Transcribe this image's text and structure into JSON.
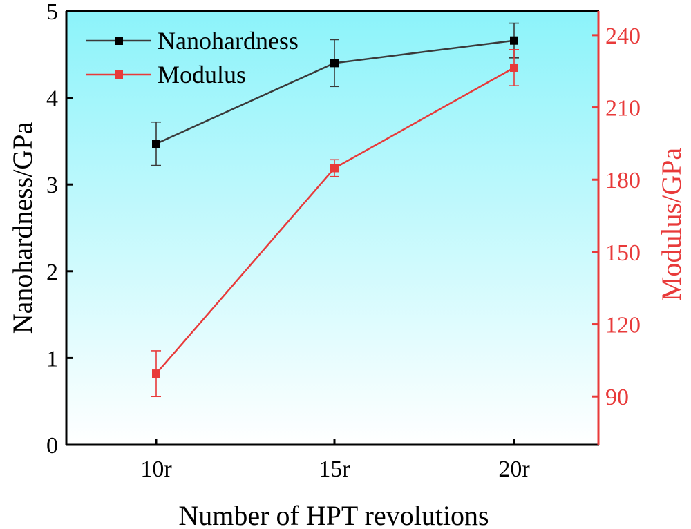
{
  "chart_data": {
    "type": "line",
    "title": "",
    "categories": [
      "10r",
      "15r",
      "20r"
    ],
    "xlabel": "Number of HPT revolutions",
    "ylabel": "Nanohardness/GPa",
    "ylabel_right": "Modulus/GPa",
    "ylim": [
      0,
      5
    ],
    "ylim_right": [
      70,
      250
    ],
    "yticks": [
      0,
      1,
      2,
      3,
      4,
      5
    ],
    "yticks_right": [
      90,
      120,
      150,
      180,
      210,
      240
    ],
    "grid": false,
    "legend_position": "top-left",
    "background_gradient": [
      "#8cf3fa",
      "#ffffff"
    ],
    "series": [
      {
        "name": "Nanohardness",
        "axis": "left",
        "color": "#000000",
        "line_color": "#3a3a3a",
        "values": [
          3.47,
          4.4,
          4.66
        ],
        "errors": [
          0.25,
          0.27,
          0.2
        ]
      },
      {
        "name": "Modulus",
        "axis": "right",
        "color": "#e83a3a",
        "line_color": "#e83a3a",
        "values": [
          99.5,
          184.8,
          226.5
        ],
        "errors": [
          9.5,
          3.5,
          7.5
        ]
      }
    ]
  }
}
